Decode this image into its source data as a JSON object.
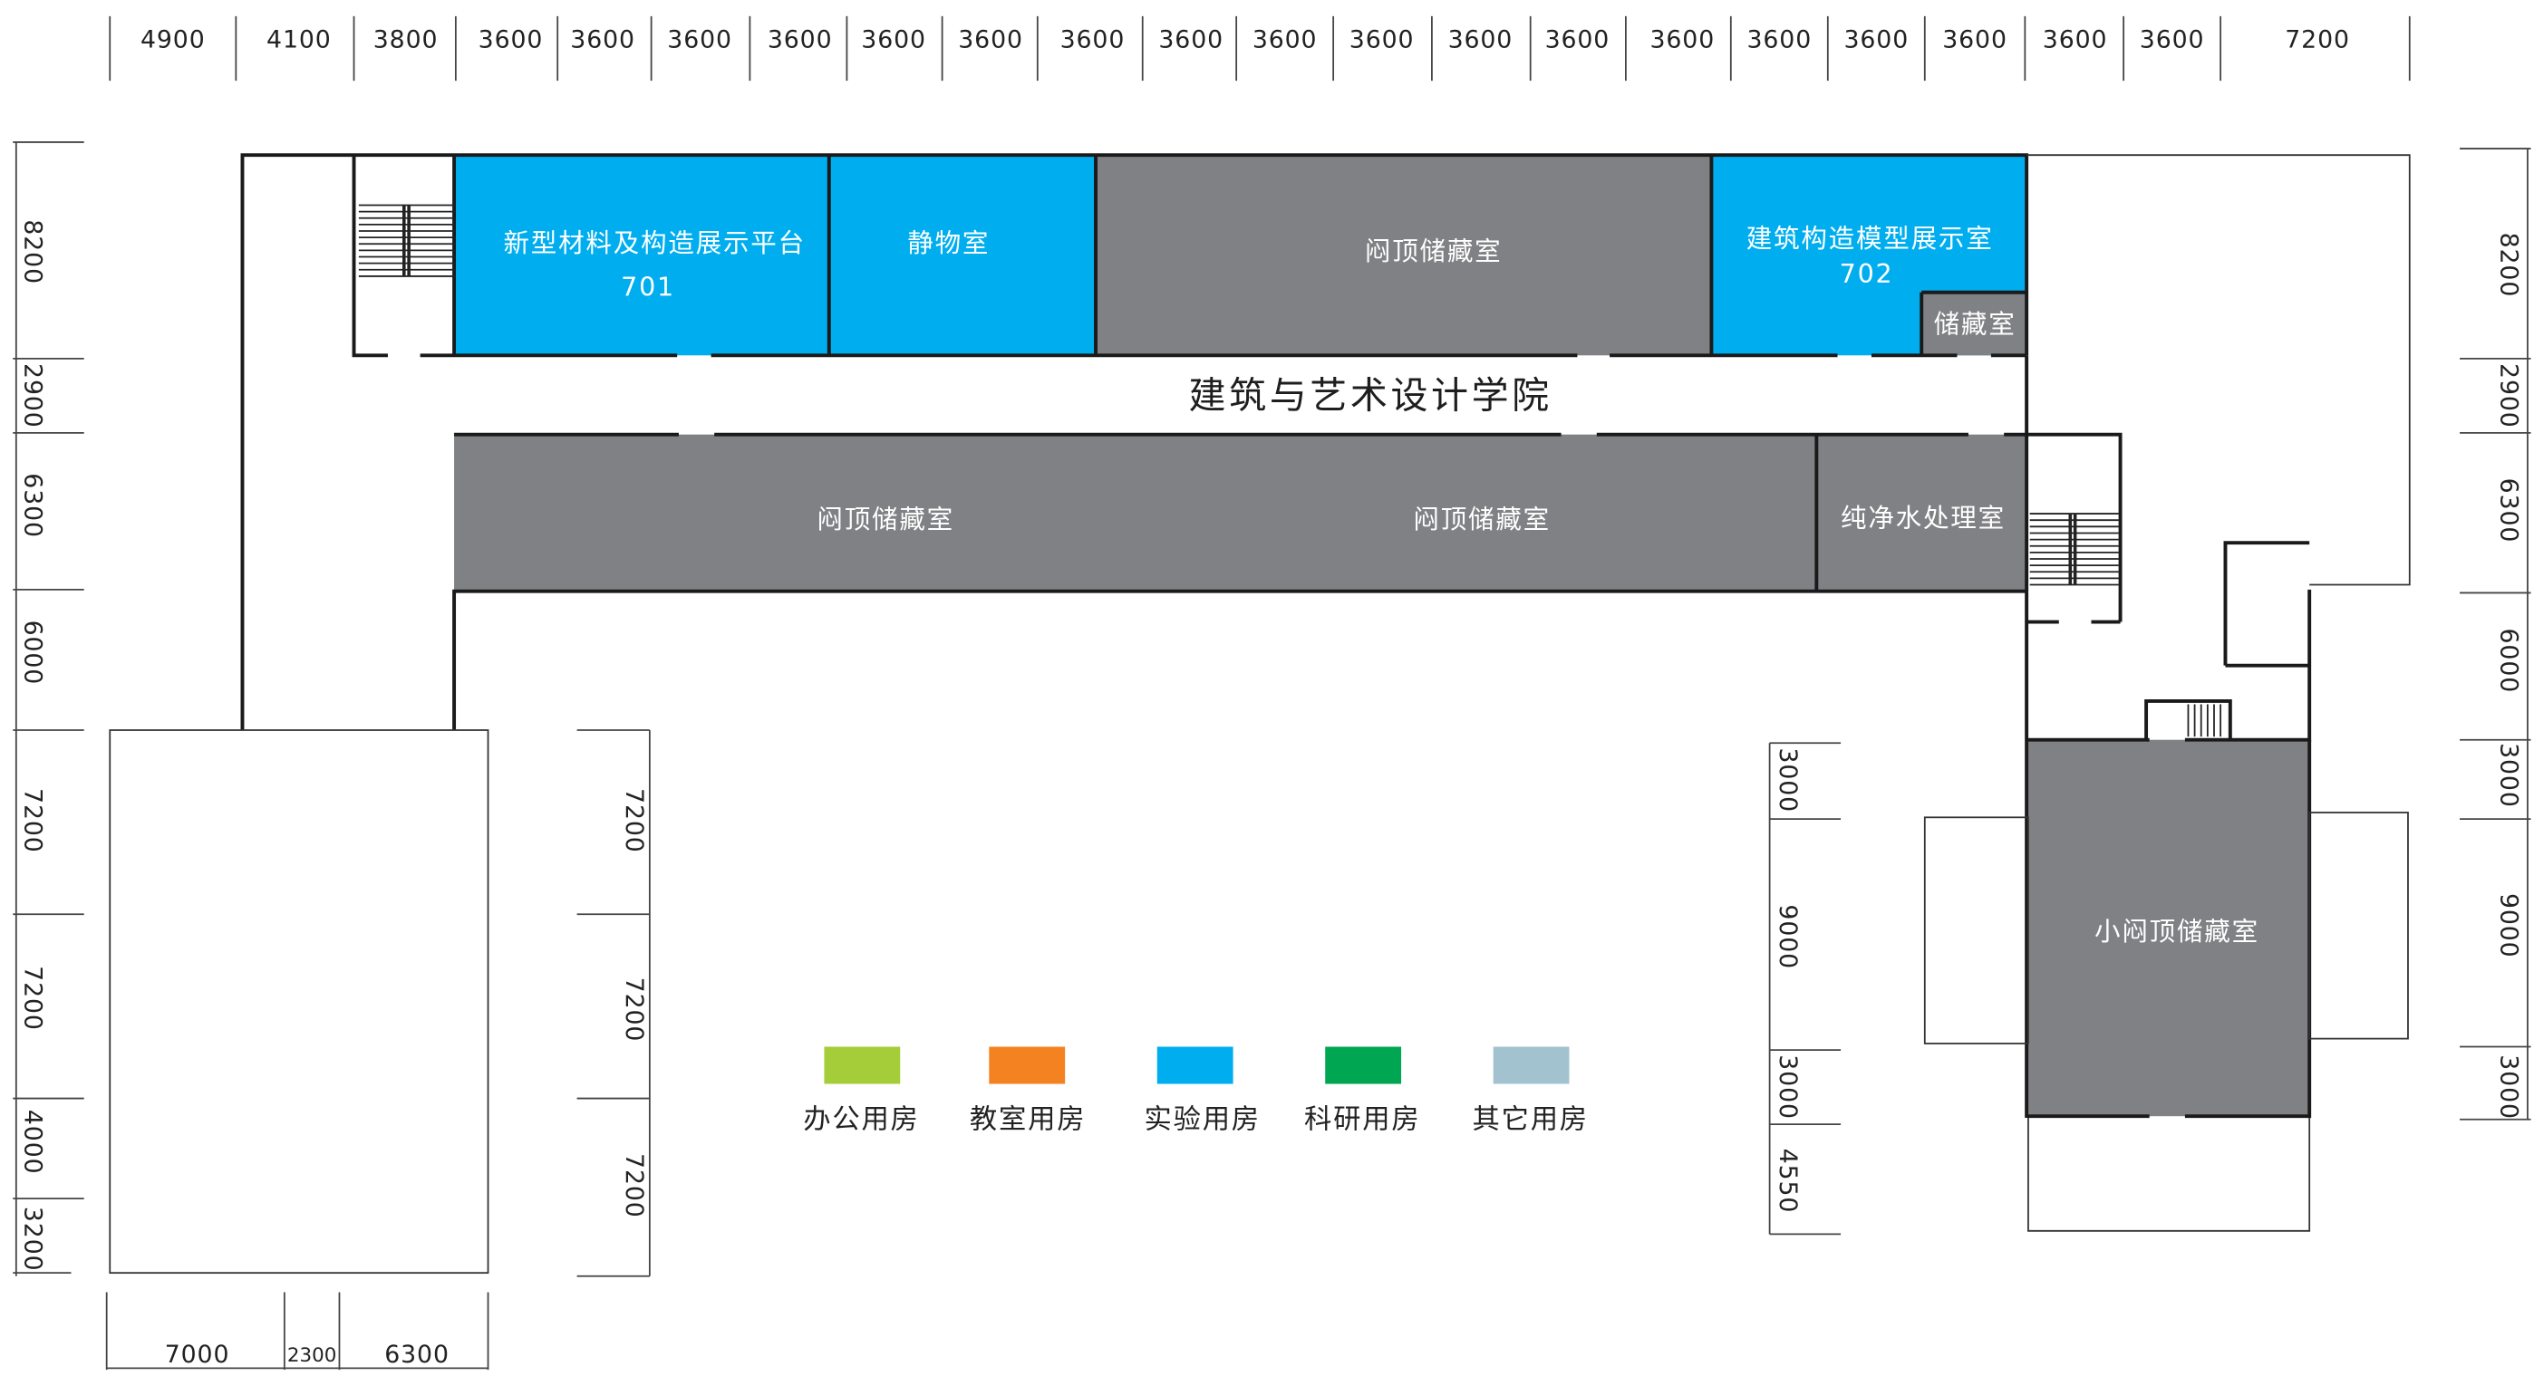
{
  "building": {
    "title": "建筑与艺术设计学院"
  },
  "rooms": {
    "new_materials": {
      "name": "新型材料及构造展示平台",
      "number": "701",
      "category": "实验用房"
    },
    "still_life": {
      "name": "静物室",
      "category": "实验用房"
    },
    "storage_top": {
      "name": "闷顶储藏室"
    },
    "model_exhibit": {
      "name": "建筑构造模型展示室",
      "number": "702",
      "category": "实验用房"
    },
    "storage_small": {
      "name": "储藏室"
    },
    "storage_mid_left": {
      "name": "闷顶储藏室"
    },
    "storage_mid_right": {
      "name": "闷顶储藏室"
    },
    "water_treatment": {
      "name": "纯净水处理室"
    },
    "small_storage": {
      "name": "小闷顶储藏室"
    }
  },
  "dimensions": {
    "top": [
      "4900",
      "4100",
      "3800",
      "3600",
      "3600",
      "3600",
      "3600",
      "3600",
      "3600",
      "3600",
      "3600",
      "3600",
      "3600",
      "3600",
      "3600",
      "3600",
      "3600",
      "3600",
      "3600",
      "3600",
      "3600",
      "7200"
    ],
    "left": [
      "8200",
      "2900",
      "6300",
      "6000",
      "7200",
      "7200",
      "4000",
      "3200"
    ],
    "right": [
      "8200",
      "2900",
      "6300",
      "6000",
      "3000",
      "9000",
      "3000"
    ],
    "bottom": [
      "7000",
      "2300",
      "6300"
    ],
    "mid_left": [
      "7200",
      "7200",
      "7200"
    ],
    "mid_right": [
      "3000",
      "9000",
      "3000",
      "4550"
    ]
  },
  "legend": [
    {
      "label": "办公用房",
      "color": "#a5cd39"
    },
    {
      "label": "教室用房",
      "color": "#f58220"
    },
    {
      "label": "实验用房",
      "color": "#00aeef"
    },
    {
      "label": "科研用房",
      "color": "#00a651"
    },
    {
      "label": "其它用房",
      "color": "#a3c2cf"
    }
  ],
  "colors": {
    "lab": "#00aeef",
    "storage": "#808184",
    "wall": "#1a1a1a"
  }
}
